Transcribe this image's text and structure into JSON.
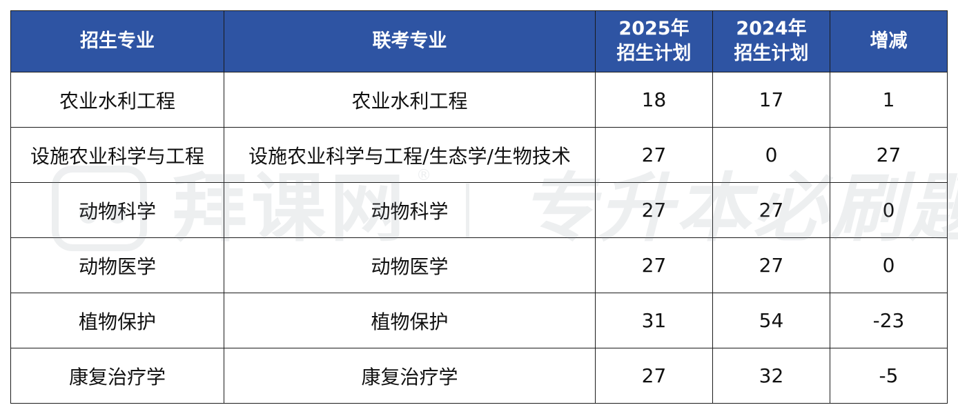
{
  "table": {
    "headers": [
      [
        "招生专业"
      ],
      [
        "联考专业"
      ],
      [
        "2025年",
        "招生计划"
      ],
      [
        "2024年",
        "招生计划"
      ],
      [
        "增减"
      ]
    ],
    "rows": [
      [
        "农业水利工程",
        "农业水利工程",
        "18",
        "17",
        "1"
      ],
      [
        "设施农业科学与工程",
        "设施农业科学与工程/生态学/生物技术",
        "27",
        "0",
        "27"
      ],
      [
        "动物科学",
        "动物科学",
        "27",
        "27",
        "0"
      ],
      [
        "动物医学",
        "动物医学",
        "27",
        "27",
        "0"
      ],
      [
        "植物保护",
        "植物保护",
        "31",
        "54",
        "-23"
      ],
      [
        "康复治疗学",
        "康复治疗学",
        "27",
        "32",
        "-5"
      ]
    ]
  },
  "watermark": {
    "brand": "拜课网",
    "registered": "®",
    "slogan": "专升本必刷题"
  },
  "colors": {
    "header_bg": "#2e54a3",
    "header_text": "#ffffff",
    "border": "#1a1a1a"
  }
}
